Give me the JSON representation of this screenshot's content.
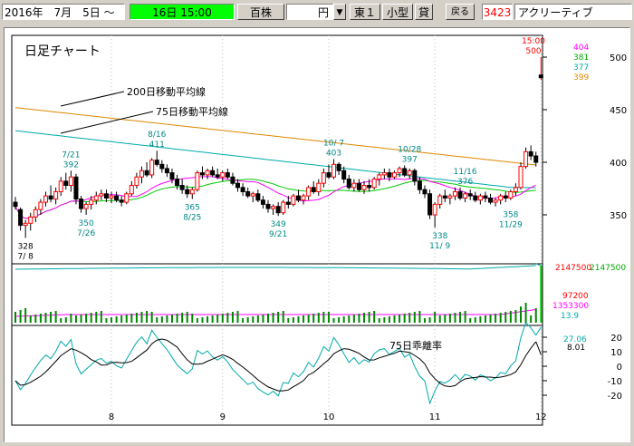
{
  "toolbar": {
    "date_start": "2016年　7月　5日 ～",
    "time_end": "16日 15:00",
    "unit_label": "百株",
    "currency_label": "円",
    "market": "東１",
    "size_class": "小型",
    "lending": "貸",
    "back_button": "戻る",
    "stock_code": "3423",
    "stock_name": "アクリーティブ"
  },
  "chart_data": {
    "type": "candlestick",
    "title": "日足チャート",
    "price_axis": {
      "ticks": [
        500,
        450,
        400,
        350
      ],
      "ylim": [
        325,
        520
      ]
    },
    "volume_axis": {
      "labels": [
        "2147500",
        "97200"
      ]
    },
    "deviation_axis": {
      "ticks": [
        20,
        10,
        0,
        -10,
        -20
      ],
      "ylim": [
        -25,
        25
      ]
    },
    "x_ticks": [
      "8",
      "9",
      "10",
      "11",
      "12"
    ],
    "legend": {
      "ma200": "200日移動平均線",
      "ma75": "75日移動平均線",
      "deviation": "75日乖離率"
    },
    "current": {
      "time": "15:00",
      "price": "500"
    },
    "side_values": {
      "v1": "404",
      "v2": "381",
      "v3": "377",
      "v4": "399"
    },
    "volume_values": {
      "latest": "2147500",
      "latest_right": "2147500",
      "small": "97200",
      "avg": "1353300",
      "ratio": "13.9"
    },
    "deviation_values": {
      "a": "27.06",
      "b": "8.01"
    },
    "annotations": [
      {
        "text": "328",
        "sub": "7/ 8",
        "type": "low",
        "i": 2,
        "v": 328
      },
      {
        "text": "7/21",
        "sub": "392",
        "type": "high",
        "i": 11,
        "v": 392
      },
      {
        "text": "350",
        "sub": "7/26",
        "type": "low",
        "i": 14,
        "v": 350
      },
      {
        "text": "8/16",
        "sub": "411",
        "type": "high",
        "i": 28,
        "v": 411
      },
      {
        "text": "365",
        "sub": "8/25",
        "type": "low",
        "i": 35,
        "v": 365
      },
      {
        "text": "349",
        "sub": "9/21",
        "type": "low",
        "i": 52,
        "v": 349
      },
      {
        "text": "10/ 7",
        "sub": "403",
        "type": "high",
        "i": 63,
        "v": 403
      },
      {
        "text": "10/28",
        "sub": "397",
        "type": "high",
        "i": 78,
        "v": 397
      },
      {
        "text": "11/16",
        "sub": "376",
        "type": "high",
        "i": 89,
        "v": 376
      },
      {
        "text": "338",
        "sub": "11/ 9",
        "type": "low",
        "i": 84,
        "v": 338
      },
      {
        "text": "358",
        "sub": "11/29",
        "type": "low",
        "i": 98,
        "v": 358
      }
    ],
    "candles": [
      {
        "o": 362,
        "h": 367,
        "l": 355,
        "c": 358
      },
      {
        "o": 355,
        "h": 357,
        "l": 335,
        "c": 340
      },
      {
        "o": 340,
        "h": 345,
        "l": 328,
        "c": 342
      },
      {
        "o": 342,
        "h": 352,
        "l": 335,
        "c": 348
      },
      {
        "o": 348,
        "h": 358,
        "l": 343,
        "c": 355
      },
      {
        "o": 355,
        "h": 365,
        "l": 350,
        "c": 362
      },
      {
        "o": 362,
        "h": 372,
        "l": 358,
        "c": 368
      },
      {
        "o": 368,
        "h": 378,
        "l": 362,
        "c": 365
      },
      {
        "o": 365,
        "h": 376,
        "l": 360,
        "c": 372
      },
      {
        "o": 372,
        "h": 386,
        "l": 368,
        "c": 382
      },
      {
        "o": 382,
        "h": 390,
        "l": 374,
        "c": 378
      },
      {
        "o": 378,
        "h": 392,
        "l": 372,
        "c": 386
      },
      {
        "o": 386,
        "h": 389,
        "l": 360,
        "c": 365
      },
      {
        "o": 365,
        "h": 368,
        "l": 352,
        "c": 356
      },
      {
        "o": 356,
        "h": 362,
        "l": 350,
        "c": 360
      },
      {
        "o": 360,
        "h": 368,
        "l": 355,
        "c": 364
      },
      {
        "o": 364,
        "h": 372,
        "l": 360,
        "c": 368
      },
      {
        "o": 368,
        "h": 374,
        "l": 364,
        "c": 370
      },
      {
        "o": 370,
        "h": 374,
        "l": 362,
        "c": 366
      },
      {
        "o": 366,
        "h": 372,
        "l": 361,
        "c": 368
      },
      {
        "o": 368,
        "h": 372,
        "l": 362,
        "c": 364
      },
      {
        "o": 364,
        "h": 368,
        "l": 358,
        "c": 362
      },
      {
        "o": 362,
        "h": 372,
        "l": 360,
        "c": 370
      },
      {
        "o": 370,
        "h": 382,
        "l": 368,
        "c": 378
      },
      {
        "o": 378,
        "h": 390,
        "l": 375,
        "c": 386
      },
      {
        "o": 386,
        "h": 396,
        "l": 380,
        "c": 392
      },
      {
        "o": 392,
        "h": 400,
        "l": 386,
        "c": 388
      },
      {
        "o": 388,
        "h": 404,
        "l": 385,
        "c": 402
      },
      {
        "o": 402,
        "h": 411,
        "l": 396,
        "c": 398
      },
      {
        "o": 398,
        "h": 402,
        "l": 390,
        "c": 394
      },
      {
        "o": 394,
        "h": 398,
        "l": 386,
        "c": 390
      },
      {
        "o": 390,
        "h": 394,
        "l": 380,
        "c": 384
      },
      {
        "o": 384,
        "h": 388,
        "l": 374,
        "c": 378
      },
      {
        "o": 378,
        "h": 384,
        "l": 370,
        "c": 374
      },
      {
        "o": 374,
        "h": 378,
        "l": 366,
        "c": 370
      },
      {
        "o": 370,
        "h": 376,
        "l": 365,
        "c": 374
      },
      {
        "o": 374,
        "h": 392,
        "l": 372,
        "c": 390
      },
      {
        "o": 390,
        "h": 396,
        "l": 384,
        "c": 388
      },
      {
        "o": 388,
        "h": 394,
        "l": 384,
        "c": 392
      },
      {
        "o": 392,
        "h": 396,
        "l": 386,
        "c": 388
      },
      {
        "o": 388,
        "h": 394,
        "l": 384,
        "c": 386
      },
      {
        "o": 386,
        "h": 392,
        "l": 382,
        "c": 390
      },
      {
        "o": 390,
        "h": 394,
        "l": 384,
        "c": 386
      },
      {
        "o": 386,
        "h": 390,
        "l": 378,
        "c": 380
      },
      {
        "o": 380,
        "h": 384,
        "l": 372,
        "c": 376
      },
      {
        "o": 376,
        "h": 380,
        "l": 368,
        "c": 372
      },
      {
        "o": 372,
        "h": 376,
        "l": 366,
        "c": 368
      },
      {
        "o": 368,
        "h": 372,
        "l": 362,
        "c": 370
      },
      {
        "o": 370,
        "h": 374,
        "l": 362,
        "c": 364
      },
      {
        "o": 364,
        "h": 368,
        "l": 356,
        "c": 360
      },
      {
        "o": 360,
        "h": 364,
        "l": 352,
        "c": 356
      },
      {
        "o": 356,
        "h": 360,
        "l": 350,
        "c": 358
      },
      {
        "o": 358,
        "h": 362,
        "l": 349,
        "c": 352
      },
      {
        "o": 352,
        "h": 364,
        "l": 350,
        "c": 362
      },
      {
        "o": 362,
        "h": 368,
        "l": 356,
        "c": 360
      },
      {
        "o": 360,
        "h": 370,
        "l": 358,
        "c": 368
      },
      {
        "o": 368,
        "h": 374,
        "l": 362,
        "c": 364
      },
      {
        "o": 364,
        "h": 370,
        "l": 360,
        "c": 368
      },
      {
        "o": 368,
        "h": 378,
        "l": 364,
        "c": 376
      },
      {
        "o": 376,
        "h": 382,
        "l": 370,
        "c": 372
      },
      {
        "o": 372,
        "h": 384,
        "l": 368,
        "c": 380
      },
      {
        "o": 380,
        "h": 394,
        "l": 376,
        "c": 390
      },
      {
        "o": 390,
        "h": 398,
        "l": 384,
        "c": 386
      },
      {
        "o": 386,
        "h": 403,
        "l": 384,
        "c": 398
      },
      {
        "o": 398,
        "h": 400,
        "l": 388,
        "c": 392
      },
      {
        "o": 392,
        "h": 396,
        "l": 380,
        "c": 384
      },
      {
        "o": 384,
        "h": 388,
        "l": 374,
        "c": 376
      },
      {
        "o": 376,
        "h": 384,
        "l": 372,
        "c": 380
      },
      {
        "o": 380,
        "h": 384,
        "l": 372,
        "c": 374
      },
      {
        "o": 374,
        "h": 382,
        "l": 370,
        "c": 378
      },
      {
        "o": 378,
        "h": 384,
        "l": 372,
        "c": 376
      },
      {
        "o": 376,
        "h": 386,
        "l": 374,
        "c": 384
      },
      {
        "o": 384,
        "h": 390,
        "l": 378,
        "c": 388
      },
      {
        "o": 388,
        "h": 394,
        "l": 384,
        "c": 390
      },
      {
        "o": 390,
        "h": 394,
        "l": 382,
        "c": 386
      },
      {
        "o": 386,
        "h": 392,
        "l": 384,
        "c": 390
      },
      {
        "o": 390,
        "h": 396,
        "l": 386,
        "c": 394
      },
      {
        "o": 394,
        "h": 397,
        "l": 386,
        "c": 388
      },
      {
        "o": 388,
        "h": 394,
        "l": 384,
        "c": 392
      },
      {
        "o": 392,
        "h": 394,
        "l": 378,
        "c": 382
      },
      {
        "o": 382,
        "h": 386,
        "l": 370,
        "c": 374
      },
      {
        "o": 374,
        "h": 378,
        "l": 366,
        "c": 370
      },
      {
        "o": 370,
        "h": 374,
        "l": 346,
        "c": 350
      },
      {
        "o": 350,
        "h": 362,
        "l": 338,
        "c": 360
      },
      {
        "o": 360,
        "h": 370,
        "l": 356,
        "c": 368
      },
      {
        "o": 368,
        "h": 374,
        "l": 362,
        "c": 366
      },
      {
        "o": 366,
        "h": 370,
        "l": 360,
        "c": 368
      },
      {
        "o": 368,
        "h": 376,
        "l": 364,
        "c": 372
      },
      {
        "o": 372,
        "h": 376,
        "l": 364,
        "c": 366
      },
      {
        "o": 366,
        "h": 372,
        "l": 362,
        "c": 370
      },
      {
        "o": 370,
        "h": 374,
        "l": 364,
        "c": 368
      },
      {
        "o": 368,
        "h": 372,
        "l": 362,
        "c": 364
      },
      {
        "o": 364,
        "h": 370,
        "l": 360,
        "c": 368
      },
      {
        "o": 368,
        "h": 372,
        "l": 362,
        "c": 366
      },
      {
        "o": 366,
        "h": 370,
        "l": 360,
        "c": 362
      },
      {
        "o": 362,
        "h": 366,
        "l": 358,
        "c": 364
      },
      {
        "o": 364,
        "h": 370,
        "l": 360,
        "c": 368
      },
      {
        "o": 368,
        "h": 372,
        "l": 362,
        "c": 366
      },
      {
        "o": 366,
        "h": 374,
        "l": 364,
        "c": 372
      },
      {
        "o": 372,
        "h": 380,
        "l": 368,
        "c": 376
      },
      {
        "o": 376,
        "h": 400,
        "l": 374,
        "c": 396
      },
      {
        "o": 396,
        "h": 414,
        "l": 394,
        "c": 410
      },
      {
        "o": 410,
        "h": 416,
        "l": 402,
        "c": 406
      },
      {
        "o": 406,
        "h": 410,
        "l": 396,
        "c": 400
      }
    ],
    "last_candle": {
      "o": 500,
      "h": 500,
      "l": 480,
      "c": 483
    }
  }
}
